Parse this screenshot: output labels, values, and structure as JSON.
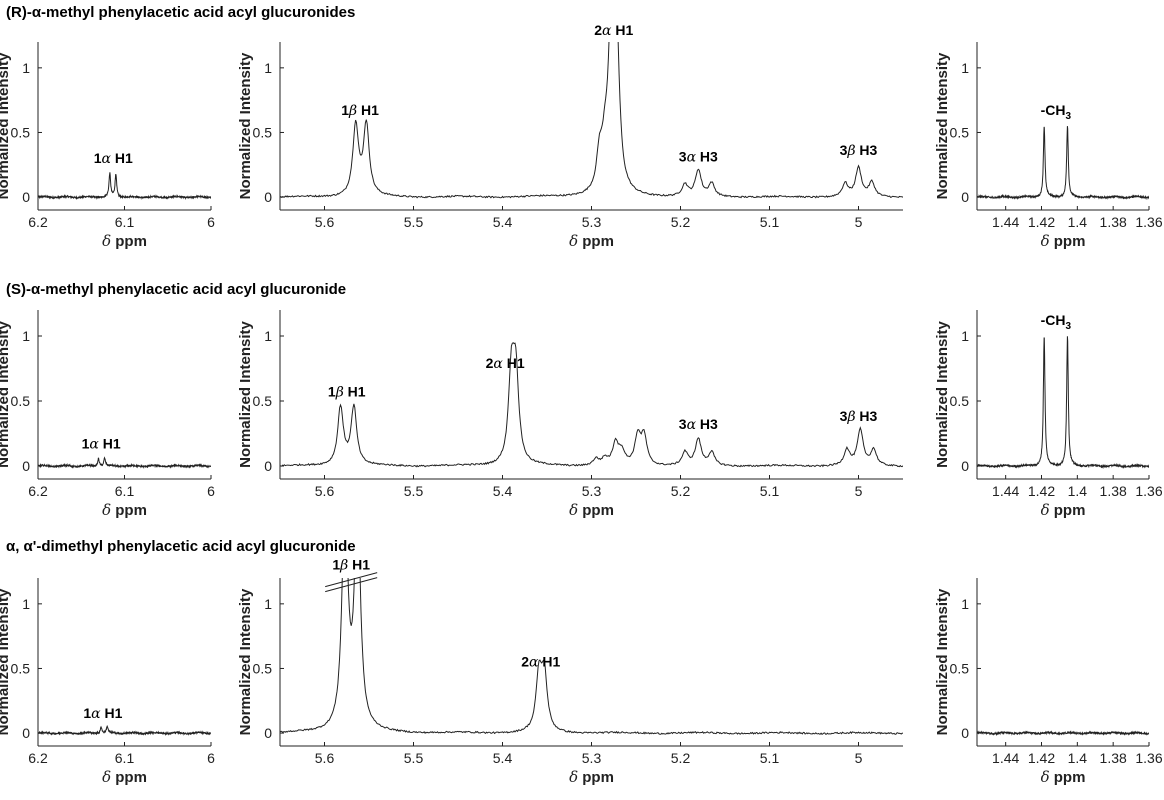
{
  "chart_data": [
    {
      "row_title": "(R)-α-methyl phenylacetic acid acyl glucuronides",
      "type": "line",
      "ylabel": "Normalized Intensity",
      "xlabel": "δ ppm",
      "yticks": [
        "0",
        "0.5",
        "1"
      ],
      "ylim": [
        -0.1,
        1.2
      ],
      "panels": [
        {
          "xlim": [
            6.2,
            6.0
          ],
          "xticks": [
            "6.2",
            "6.1",
            "6"
          ],
          "xtick_values": [
            6.2,
            6.1,
            6.0
          ],
          "peaks": [
            {
              "x": 6.117,
              "h": 0.18
            },
            {
              "x": 6.11,
              "h": 0.18
            }
          ],
          "labels": [
            {
              "text": "1α H1",
              "x": 6.113,
              "y": 0.25
            }
          ]
        },
        {
          "xlim": [
            5.65,
            4.95
          ],
          "xticks": [
            "5.6",
            "5.5",
            "5.4",
            "5.3",
            "5.2",
            "5.1",
            "5"
          ],
          "xtick_values": [
            5.6,
            5.5,
            5.4,
            5.3,
            5.2,
            5.1,
            5.0
          ],
          "peaks": [
            {
              "x": 5.565,
              "h": 0.55
            },
            {
              "x": 5.553,
              "h": 0.55
            },
            {
              "x": 5.291,
              "h": 0.27
            },
            {
              "x": 5.285,
              "h": 0.27
            },
            {
              "x": 5.278,
              "h": 1.17
            },
            {
              "x": 5.272,
              "h": 1.19
            },
            {
              "x": 5.195,
              "h": 0.09
            },
            {
              "x": 5.18,
              "h": 0.2
            },
            {
              "x": 5.165,
              "h": 0.1
            },
            {
              "x": 5.015,
              "h": 0.1
            },
            {
              "x": 5.0,
              "h": 0.22
            },
            {
              "x": 4.985,
              "h": 0.11
            }
          ],
          "labels": [
            {
              "text": "1β H1",
              "x": 5.56,
              "y": 0.62
            },
            {
              "text": "2α H1",
              "x": 5.275,
              "y": 1.24
            },
            {
              "text": "3α H3",
              "x": 5.18,
              "y": 0.26
            },
            {
              "text": "3β H3",
              "x": 5.0,
              "y": 0.31
            }
          ]
        },
        {
          "xlim": [
            1.456,
            1.36
          ],
          "xticks": [
            "1.44",
            "1.42",
            "1.4",
            "1.38",
            "1.36"
          ],
          "xtick_values": [
            1.44,
            1.42,
            1.4,
            1.38,
            1.36
          ],
          "peaks": [
            {
              "x": 1.4185,
              "h": 0.55
            },
            {
              "x": 1.4055,
              "h": 0.55
            }
          ],
          "labels": [
            {
              "text": "-CH3",
              "x": 1.412,
              "y": 0.62
            }
          ]
        }
      ]
    },
    {
      "row_title": "(S)-α-methyl phenylacetic acid acyl glucuronide",
      "type": "line",
      "ylabel": "Normalized Intensity",
      "xlabel": "δ ppm",
      "yticks": [
        "0",
        "0.5",
        "1"
      ],
      "ylim": [
        -0.1,
        1.2
      ],
      "panels": [
        {
          "xlim": [
            6.2,
            6.0
          ],
          "xticks": [
            "6.2",
            "6.1",
            "6"
          ],
          "xtick_values": [
            6.2,
            6.1,
            6.0
          ],
          "peaks": [
            {
              "x": 6.13,
              "h": 0.06
            },
            {
              "x": 6.123,
              "h": 0.06
            }
          ],
          "labels": [
            {
              "text": "1α H1",
              "x": 6.127,
              "y": 0.12
            }
          ]
        },
        {
          "xlim": [
            5.65,
            4.95
          ],
          "xticks": [
            "5.6",
            "5.5",
            "5.4",
            "5.3",
            "5.2",
            "5.1",
            "5"
          ],
          "xtick_values": [
            5.6,
            5.5,
            5.4,
            5.3,
            5.2,
            5.1,
            5.0
          ],
          "peaks": [
            {
              "x": 5.582,
              "h": 0.45
            },
            {
              "x": 5.567,
              "h": 0.45
            },
            {
              "x": 5.39,
              "h": 0.67
            },
            {
              "x": 5.385,
              "h": 0.67
            },
            {
              "x": 5.295,
              "h": 0.05
            },
            {
              "x": 5.285,
              "h": 0.05
            },
            {
              "x": 5.273,
              "h": 0.17
            },
            {
              "x": 5.266,
              "h": 0.1
            },
            {
              "x": 5.248,
              "h": 0.22
            },
            {
              "x": 5.241,
              "h": 0.22
            },
            {
              "x": 5.195,
              "h": 0.1
            },
            {
              "x": 5.18,
              "h": 0.2
            },
            {
              "x": 5.165,
              "h": 0.1
            },
            {
              "x": 5.013,
              "h": 0.12
            },
            {
              "x": 4.998,
              "h": 0.27
            },
            {
              "x": 4.983,
              "h": 0.12
            }
          ],
          "labels": [
            {
              "text": "1β H1",
              "x": 5.575,
              "y": 0.52
            },
            {
              "text": "2α H1",
              "x": 5.397,
              "y": 0.74
            },
            {
              "text": "3α H3",
              "x": 5.18,
              "y": 0.27
            },
            {
              "text": "3β H3",
              "x": 5.0,
              "y": 0.33
            }
          ]
        },
        {
          "xlim": [
            1.456,
            1.36
          ],
          "xticks": [
            "1.44",
            "1.42",
            "1.4",
            "1.38",
            "1.36"
          ],
          "xtick_values": [
            1.44,
            1.42,
            1.4,
            1.38,
            1.36
          ],
          "peaks": [
            {
              "x": 1.4185,
              "h": 1.0
            },
            {
              "x": 1.4055,
              "h": 1.0
            }
          ],
          "labels": [
            {
              "text": "-CH3",
              "x": 1.412,
              "y": 1.07
            }
          ]
        }
      ]
    },
    {
      "row_title": "α, α'-dimethyl phenylacetic acid acyl glucuronide",
      "type": "line",
      "ylabel": "Normalized Intensity",
      "xlabel": "δ ppm",
      "yticks": [
        "0",
        "0.5",
        "1"
      ],
      "ylim": [
        -0.1,
        1.2
      ],
      "panels": [
        {
          "xlim": [
            6.2,
            6.0
          ],
          "xticks": [
            "6.2",
            "6.1",
            "6"
          ],
          "xtick_values": [
            6.2,
            6.1,
            6.0
          ],
          "peaks": [
            {
              "x": 6.127,
              "h": 0.05
            },
            {
              "x": 6.12,
              "h": 0.05
            }
          ],
          "labels": [
            {
              "text": "1α H1",
              "x": 6.125,
              "y": 0.1
            }
          ]
        },
        {
          "xlim": [
            5.65,
            4.95
          ],
          "xticks": [
            "5.6",
            "5.5",
            "5.4",
            "5.3",
            "5.2",
            "5.1",
            "5"
          ],
          "xtick_values": [
            5.6,
            5.5,
            5.4,
            5.3,
            5.2,
            5.1,
            5.0
          ],
          "peaks": [
            {
              "x": 5.577,
              "h": 1.8
            },
            {
              "x": 5.563,
              "h": 1.8
            },
            {
              "x": 5.359,
              "h": 0.43
            },
            {
              "x": 5.353,
              "h": 0.43
            }
          ],
          "labels": [
            {
              "text": "1β H1",
              "x": 5.57,
              "y": 1.25
            },
            {
              "text": "2α H1",
              "x": 5.357,
              "y": 0.5
            }
          ],
          "axis_break": true
        },
        {
          "xlim": [
            1.456,
            1.36
          ],
          "xticks": [
            "1.44",
            "1.42",
            "1.4",
            "1.38",
            "1.36"
          ],
          "xtick_values": [
            1.44,
            1.42,
            1.4,
            1.38,
            1.36
          ],
          "peaks": [],
          "labels": []
        }
      ]
    }
  ]
}
